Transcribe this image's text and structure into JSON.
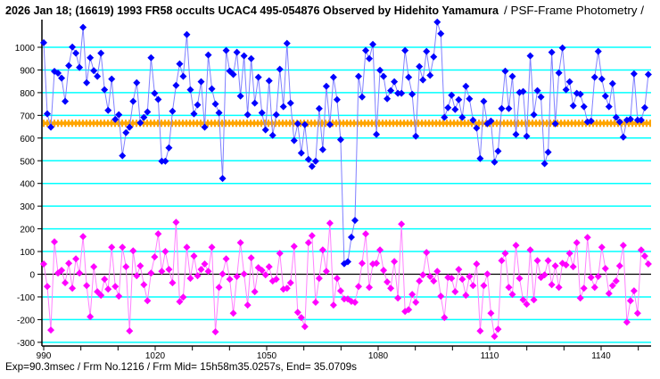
{
  "header": {
    "title": "2026 Jan 18; (16619) 1993 FR58 occults UCAC4 495-054876 Observed by Hidehito Yamamura",
    "subtitle": "/ PSF-Frame Photometry /"
  },
  "footer": {
    "info": "Exp=90.3msec / Frm No.1216 / Frm Mid= 15h58m35.0257s,  End= 35.0709s"
  },
  "colors": {
    "target": "#0000ff",
    "target_line": "#8080ff",
    "comparison": "#ff00ff",
    "comparison_line": "#ff80ff",
    "reference": "#ffa500",
    "grid": "#00ffff"
  },
  "chart_data": {
    "type": "line",
    "title": "2026 Jan 18; (16619) 1993 FR58 occults UCAC4 495-054876 Observed by Hidehito Yamamura / PSF-Frame Photometry /",
    "xlabel": "",
    "ylabel": "",
    "xlim": [
      990,
      1153.7
    ],
    "ylim": [
      -300,
      1100
    ],
    "x_first": 990,
    "x_last": 1152.7,
    "xticks": [
      990,
      1020,
      1050,
      1080,
      1110,
      1140
    ],
    "xtick_labels": [
      "990",
      "1020",
      "1050",
      "1080",
      "1110",
      "1140"
    ],
    "yticks": [
      1000,
      900,
      800,
      700,
      600,
      500,
      400,
      300,
      200,
      100,
      0,
      -100,
      -200,
      -300
    ],
    "ytick_labels": [
      "1000",
      "900",
      "800",
      "700",
      "600",
      "500",
      "400",
      "300",
      "200",
      "100",
      "0",
      "-100",
      "-200",
      "-300"
    ],
    "grid": true,
    "series": [
      {
        "name": "target",
        "color": "#0000ff",
        "values": [
          1020,
          707,
          648,
          894,
          886,
          864,
          762,
          919,
          1001,
          974,
          911,
          1088,
          844,
          954,
          897,
          872,
          974,
          813,
          722,
          860,
          682,
          703,
          522,
          624,
          648,
          762,
          844,
          667,
          691,
          715,
          954,
          797,
          770,
          498,
          498,
          557,
          718,
          832,
          927,
          872,
          1056,
          813,
          707,
          746,
          848,
          648,
          966,
          817,
          750,
          711,
          422,
          986,
          895,
          880,
          978,
          785,
          962,
          703,
          950,
          754,
          868,
          711,
          636,
          852,
          612,
          703,
          903,
          738,
          1017,
          754,
          589,
          663,
          534,
          659,
          506,
          475,
          498,
          730,
          549,
          828,
          659,
          868,
          769,
          593,
          46,
          55,
          163,
          237,
          872,
          781,
          986,
          950,
          1013,
          616,
          899,
          872,
          773,
          809,
          848,
          797,
          797,
          986,
          868,
          793,
          608,
          915,
          856,
          982,
          876,
          958,
          1111,
          1060,
          691,
          734,
          789,
          726,
          769,
          691,
          828,
          773,
          679,
          644,
          510,
          762,
          663,
          675,
          494,
          542,
          730,
          895,
          730,
          872,
          616,
          801,
          805,
          608,
          962,
          703,
          809,
          781,
          487,
          538,
          978,
          663,
          887,
          997,
          813,
          848,
          742,
          797,
          793,
          738,
          671,
          675,
          868,
          982,
          860,
          785,
          738,
          840,
          691,
          671,
          604,
          679,
          683,
          883,
          679,
          679,
          734,
          880
        ]
      },
      {
        "name": "comparison",
        "color": "#ff00ff",
        "values": [
          45,
          -54,
          -246,
          143,
          5,
          17,
          -38,
          48,
          -62,
          68,
          5,
          166,
          -50,
          -187,
          33,
          -77,
          -93,
          -22,
          -66,
          119,
          -54,
          -97,
          119,
          33,
          -250,
          103,
          -7,
          37,
          -46,
          -117,
          5,
          76,
          178,
          13,
          100,
          21,
          -38,
          229,
          -121,
          -101,
          119,
          -18,
          80,
          -7,
          21,
          45,
          13,
          119,
          -254,
          -58,
          1,
          68,
          -22,
          -172,
          -10,
          139,
          1,
          -136,
          72,
          -77,
          29,
          17,
          -3,
          33,
          -30,
          -22,
          92,
          -66,
          -62,
          -38,
          123,
          -168,
          -191,
          -231,
          139,
          170,
          -124,
          -18,
          107,
          13,
          225,
          -136,
          -18,
          -73,
          -109,
          -109,
          -120,
          -124,
          -54,
          48,
          178,
          -58,
          45,
          48,
          107,
          17,
          -34,
          -62,
          56,
          -105,
          221,
          -164,
          -156,
          -89,
          -124,
          -30,
          -3,
          96,
          -10,
          -30,
          13,
          -97,
          -191,
          -14,
          -18,
          -77,
          21,
          -22,
          -93,
          -10,
          -50,
          45,
          -250,
          -50,
          1,
          -172,
          -274,
          -242,
          60,
          92,
          -58,
          -89,
          127,
          -18,
          -113,
          -132,
          107,
          -113,
          60,
          -14,
          -3,
          60,
          -46,
          37,
          -58,
          48,
          41,
          92,
          33,
          139,
          -105,
          -62,
          162,
          -14,
          -58,
          -10,
          119,
          25,
          -85,
          -50,
          -30,
          37,
          127,
          -211,
          -117,
          -73,
          -172,
          107,
          80,
          45
        ]
      },
      {
        "name": "reference-level",
        "color": "#ffa500",
        "constant": 665
      }
    ]
  }
}
